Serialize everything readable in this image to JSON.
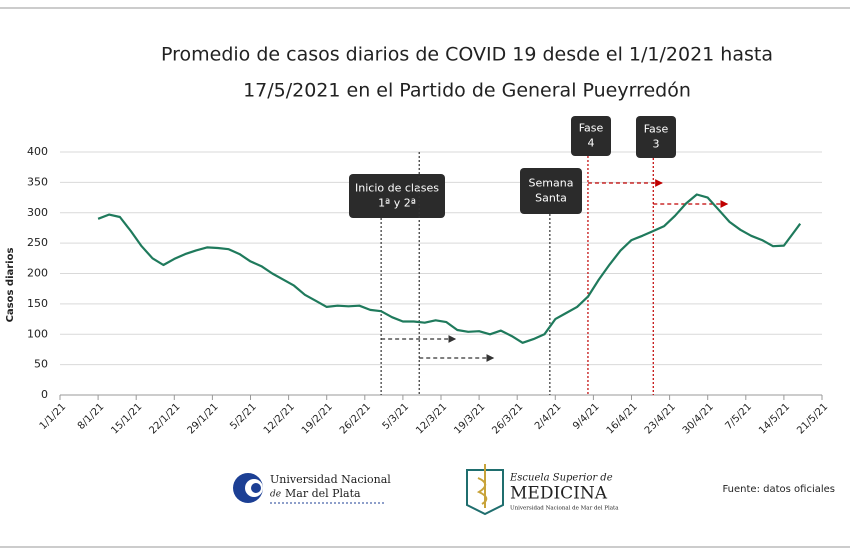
{
  "chart_data": {
    "type": "line",
    "title": [
      "Promedio de casos diarios de COVID 19 desde el 1/1/2021 hasta",
      "17/5/2021 en el Partido de General Pueyrredón"
    ],
    "y_label": "Casos diarios",
    "color": "#1f7a5c",
    "grid": true,
    "ylim": [
      0,
      400
    ],
    "yticks": [
      0,
      50,
      100,
      150,
      200,
      250,
      300,
      350,
      400
    ],
    "xlim": [
      "2021-01-01",
      "2021-05-21"
    ],
    "xticks": [
      {
        "value": "2021-01-01",
        "label": "1/1/21"
      },
      {
        "value": "2021-01-08",
        "label": "8/1/21"
      },
      {
        "value": "2021-01-15",
        "label": "15/1/21"
      },
      {
        "value": "2021-01-22",
        "label": "22/1/21"
      },
      {
        "value": "2021-01-29",
        "label": "29/1/21"
      },
      {
        "value": "2021-02-05",
        "label": "5/2/21"
      },
      {
        "value": "2021-02-12",
        "label": "12/2/21"
      },
      {
        "value": "2021-02-19",
        "label": "19/2/21"
      },
      {
        "value": "2021-02-26",
        "label": "26/2/21"
      },
      {
        "value": "2021-03-05",
        "label": "5/3/21"
      },
      {
        "value": "2021-03-12",
        "label": "12/3/21"
      },
      {
        "value": "2021-03-19",
        "label": "19/3/21"
      },
      {
        "value": "2021-03-26",
        "label": "26/3/21"
      },
      {
        "value": "2021-04-02",
        "label": "2/4/21"
      },
      {
        "value": "2021-04-09",
        "label": "9/4/21"
      },
      {
        "value": "2021-04-16",
        "label": "16/4/21"
      },
      {
        "value": "2021-04-23",
        "label": "23/4/21"
      },
      {
        "value": "2021-04-30",
        "label": "30/4/21"
      },
      {
        "value": "2021-05-07",
        "label": "7/5/21"
      },
      {
        "value": "2021-05-14",
        "label": "14/5/21"
      },
      {
        "value": "2021-05-21",
        "label": "21/5/21"
      }
    ],
    "x": [
      "2021-01-08",
      "2021-01-10",
      "2021-01-12",
      "2021-01-14",
      "2021-01-16",
      "2021-01-18",
      "2021-01-20",
      "2021-01-22",
      "2021-01-24",
      "2021-01-26",
      "2021-01-28",
      "2021-01-30",
      "2021-02-01",
      "2021-02-03",
      "2021-02-05",
      "2021-02-07",
      "2021-02-09",
      "2021-02-11",
      "2021-02-13",
      "2021-02-15",
      "2021-02-17",
      "2021-02-19",
      "2021-02-21",
      "2021-02-23",
      "2021-02-25",
      "2021-02-27",
      "2021-03-01",
      "2021-03-03",
      "2021-03-05",
      "2021-03-07",
      "2021-03-09",
      "2021-03-11",
      "2021-03-13",
      "2021-03-15",
      "2021-03-17",
      "2021-03-19",
      "2021-03-21",
      "2021-03-23",
      "2021-03-25",
      "2021-03-27",
      "2021-03-29",
      "2021-03-31",
      "2021-04-02",
      "2021-04-04",
      "2021-04-06",
      "2021-04-08",
      "2021-04-10",
      "2021-04-12",
      "2021-04-14",
      "2021-04-16",
      "2021-04-18",
      "2021-04-20",
      "2021-04-22",
      "2021-04-24",
      "2021-04-26",
      "2021-04-28",
      "2021-04-30",
      "2021-05-02",
      "2021-05-04",
      "2021-05-06",
      "2021-05-08",
      "2021-05-10",
      "2021-05-12",
      "2021-05-14",
      "2021-05-16",
      "2021-05-17"
    ],
    "values": [
      290,
      297,
      293,
      270,
      245,
      225,
      214,
      224,
      232,
      238,
      243,
      242,
      240,
      232,
      220,
      212,
      200,
      190,
      180,
      165,
      155,
      145,
      147,
      146,
      147,
      140,
      138,
      128,
      121,
      121,
      119,
      123,
      120,
      107,
      104,
      105,
      100,
      106,
      97,
      86,
      92,
      100,
      125,
      135,
      145,
      162,
      190,
      215,
      238,
      255,
      262,
      270,
      278,
      295,
      315,
      330,
      325,
      305,
      285,
      272,
      262,
      255,
      245,
      246,
      270,
      282
    ],
    "annotations": [
      {
        "x": "2021-03-01",
        "lines": [
          "Inicio de clases",
          "1ª y 2ª"
        ],
        "color": "#333333"
      },
      {
        "x": "2021-03-08",
        "lines": [
          "Inicio de clases",
          "1ª y 2ª"
        ],
        "color": "#333333"
      },
      {
        "x": "2021-04-01",
        "lines": [
          "Semana",
          "Santa"
        ],
        "color": "#333333"
      },
      {
        "x": "2021-04-08",
        "lines": [
          "Fase",
          "4"
        ],
        "color": "#c00000"
      },
      {
        "x": "2021-04-20",
        "lines": [
          "Fase",
          "3"
        ],
        "color": "#c00000"
      }
    ]
  },
  "footer": {
    "unmdp": [
      "Universidad Nacional",
      "de",
      "Mar del Plata"
    ],
    "medicina": [
      "Escuela Superior de",
      "MEDICINA",
      "Universidad Nacional de Mar del Plata"
    ],
    "source": "Fuente: datos oficiales"
  }
}
